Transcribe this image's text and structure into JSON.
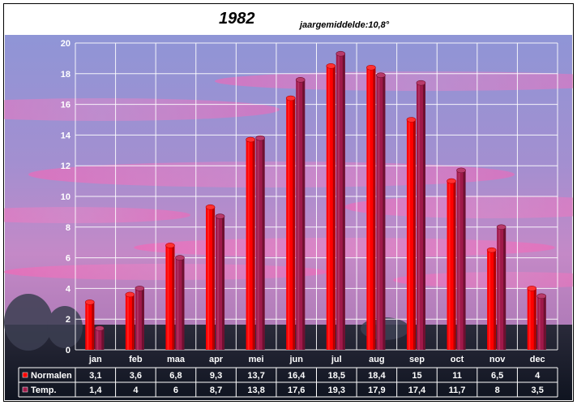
{
  "chart_data": {
    "type": "bar",
    "title": "1982",
    "subtitle": "jaargemiddelde:10,8°",
    "categories": [
      "jan",
      "feb",
      "maa",
      "apr",
      "mei",
      "jun",
      "jul",
      "aug",
      "sep",
      "oct",
      "nov",
      "dec"
    ],
    "series": [
      {
        "name": "Normalen",
        "color": "#ff0000",
        "values": [
          3.1,
          3.6,
          6.8,
          9.3,
          13.7,
          16.4,
          18.5,
          18.4,
          15,
          11,
          6.5,
          4
        ],
        "labels": [
          "3,1",
          "3,6",
          "6,8",
          "9,3",
          "13,7",
          "16,4",
          "18,5",
          "18,4",
          "15",
          "11",
          "6,5",
          "4"
        ]
      },
      {
        "name": "Temp.",
        "color": "#a0194a",
        "values": [
          1.4,
          4,
          6,
          8.7,
          13.8,
          17.6,
          19.3,
          17.9,
          17.4,
          11.7,
          8,
          3.5
        ],
        "labels": [
          "1,4",
          "4",
          "6",
          "8,7",
          "13,8",
          "17,6",
          "19,3",
          "17,9",
          "17,4",
          "11,7",
          "8",
          "3,5"
        ]
      }
    ],
    "ylim": [
      0,
      20
    ],
    "yticks": [
      0,
      2,
      4,
      6,
      8,
      10,
      12,
      14,
      16,
      18,
      20
    ],
    "grid": true,
    "legend": "data-table"
  }
}
